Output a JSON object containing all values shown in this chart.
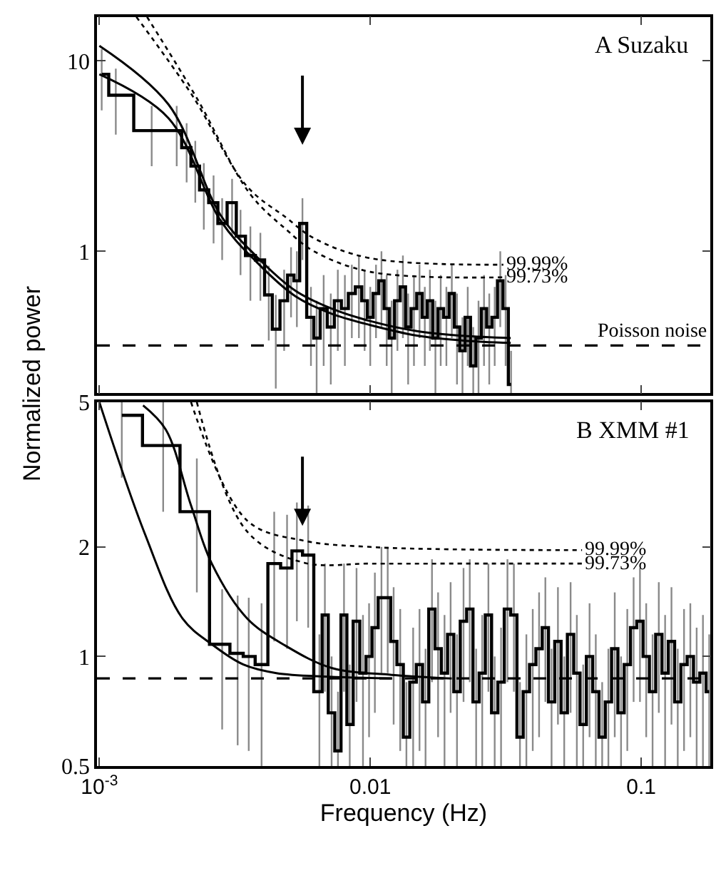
{
  "chart_data": [
    {
      "type": "step",
      "title": "A Suzaku",
      "ylabel": "Normalized power",
      "log": "xy",
      "tick_labels": "y",
      "xlim": [
        0.00098,
        0.18
      ],
      "xticks": [
        {
          "value": 0.001,
          "label": null
        },
        {
          "value": 0.01,
          "label": null
        },
        {
          "value": 0.1,
          "label": null
        }
      ],
      "ylim": [
        0.18,
        17
      ],
      "yticks": [
        1,
        10
      ],
      "ref_lines": [
        {
          "axis": "y",
          "value": 0.32,
          "label": "Poisson noise",
          "line_style": "dashed",
          "color": "#000000"
        }
      ],
      "series": [
        {
          "color": "#000000",
          "x": [
            0.00102,
            0.00115,
            0.00156,
            0.00193,
            0.0021,
            0.00226,
            0.00243,
            0.00264,
            0.00284,
            0.00309,
            0.00332,
            0.00361,
            0.00393,
            0.00422,
            0.00448,
            0.00481,
            0.0051,
            0.00536,
            0.00562,
            0.00604,
            0.00634,
            0.00673,
            0.00715,
            0.00759,
            0.00806,
            0.00855,
            0.00908,
            0.00953,
            0.01,
            0.0105,
            0.011,
            0.0115,
            0.012,
            0.0126,
            0.0132,
            0.0138,
            0.0145,
            0.0152,
            0.0159,
            0.0166,
            0.0174,
            0.0182,
            0.0191,
            0.02,
            0.0209,
            0.0219,
            0.0229,
            0.024,
            0.0251,
            0.0263,
            0.0275,
            0.0288,
            0.0302,
            0.0316,
            0.0331
          ],
          "values": [
            8.5,
            6.6,
            4.3,
            4.3,
            3.5,
            2.8,
            2.1,
            1.8,
            1.4,
            1.8,
            1.2,
            0.95,
            0.9,
            0.59,
            0.39,
            0.55,
            0.75,
            0.7,
            1.4,
            0.45,
            0.35,
            0.5,
            0.4,
            0.55,
            0.5,
            0.6,
            0.65,
            0.55,
            0.45,
            0.6,
            0.7,
            0.5,
            0.35,
            0.55,
            0.65,
            0.4,
            0.5,
            0.6,
            0.45,
            0.55,
            0.35,
            0.5,
            0.45,
            0.6,
            0.4,
            0.3,
            0.45,
            0.25,
            0.35,
            0.5,
            0.4,
            0.45,
            0.7,
            0.5,
            0.2
          ],
          "errors": [
            3,
            2.5,
            1.5,
            1.5,
            1.2,
            1,
            0.8,
            0.7,
            0.5,
            0.6,
            0.45,
            0.4,
            0.35,
            0.25,
            0.2,
            0.25,
            0.3,
            0.3,
            0.5,
            0.2,
            0.2,
            0.25,
            0.2,
            0.25,
            0.25,
            0.25,
            0.3,
            0.25,
            0.2,
            0.25,
            0.3,
            0.25,
            0.2,
            0.25,
            0.3,
            0.2,
            0.25,
            0.25,
            0.2,
            0.25,
            0.2,
            0.25,
            0.2,
            0.25,
            0.2,
            0.15,
            0.2,
            0.15,
            0.2,
            0.25,
            0.2,
            0.2,
            0.3,
            0.25,
            0.1
          ]
        },
        {
          "type": "line",
          "color": "#000000",
          "x": [
            0.001,
            0.0018,
            0.0028,
            0.0038,
            0.0053,
            0.0072,
            0.01,
            0.015,
            0.022,
            0.033
          ],
          "values": [
            12,
            5.9,
            1.55,
            0.94,
            0.62,
            0.5,
            0.43,
            0.38,
            0.36,
            0.35
          ]
        },
        {
          "type": "line",
          "color": "#000000",
          "x": [
            0.001,
            0.0018,
            0.0028,
            0.0038,
            0.0053,
            0.0072,
            0.01,
            0.015,
            0.022,
            0.033
          ],
          "values": [
            8.5,
            5.0,
            1.45,
            0.88,
            0.58,
            0.47,
            0.41,
            0.36,
            0.34,
            0.33
          ]
        },
        {
          "type": "line",
          "name": "99.99%",
          "color": "#000000",
          "line_style": "dotted",
          "x": [
            0.00137,
            0.0022,
            0.0035,
            0.0049,
            0.0062,
            0.01,
            0.031
          ],
          "values": [
            17,
            6.6,
            2.2,
            1.5,
            1.17,
            0.92,
            0.85
          ]
        },
        {
          "type": "line",
          "name": "99.73%",
          "color": "#000000",
          "line_style": "dotted",
          "x": [
            0.0015,
            0.0023,
            0.0036,
            0.0049,
            0.0062,
            0.01,
            0.031
          ],
          "values": [
            17,
            6.3,
            2.0,
            1.3,
            1.0,
            0.78,
            0.73
          ]
        }
      ]
    },
    {
      "type": "step",
      "title": "B XMM #1",
      "xlabel": "Frequency (Hz)",
      "log": "xy",
      "xlim": [
        0.00098,
        0.18
      ],
      "xticks": [
        {
          "value": 0.001,
          "label": "10$^{-3}$"
        },
        0.01,
        0.1
      ],
      "ylim": [
        0.5,
        5
      ],
      "yticks": [
        0.5,
        1,
        2,
        5
      ],
      "ref_lines": [
        {
          "axis": "y",
          "value": 0.87,
          "line_style": "dashed",
          "color": "#000000"
        }
      ],
      "series": [
        {
          "color": "#000000",
          "x": [
            0.00121,
            0.00172,
            0.00229,
            0.00284,
            0.00324,
            0.00356,
            0.00397,
            0.00442,
            0.00493,
            0.00536,
            0.0059,
            0.00649,
            0.0068,
            0.0072,
            0.0076,
            0.008,
            0.0084,
            0.0089,
            0.0094,
            0.0099,
            0.0104,
            0.011,
            0.0116,
            0.0122,
            0.0129,
            0.0136,
            0.0144,
            0.0152,
            0.016,
            0.0169,
            0.0178,
            0.0188,
            0.0198,
            0.0209,
            0.0221,
            0.0233,
            0.0246,
            0.0259,
            0.0273,
            0.0288,
            0.0304,
            0.0321,
            0.0339,
            0.0357,
            0.0377,
            0.0398,
            0.042,
            0.0443,
            0.0467,
            0.0493,
            0.052,
            0.0549,
            0.0579,
            0.0611,
            0.0645,
            0.068,
            0.0718,
            0.0757,
            0.0799,
            0.0843,
            0.0889,
            0.0938,
            0.099,
            0.1044,
            0.1102,
            0.1162,
            0.1226,
            0.1294,
            0.1365,
            0.144,
            0.1519,
            0.1603,
            0.1691,
            0.1784
          ],
          "values": [
            4.6,
            3.8,
            2.5,
            1.08,
            1.02,
            1.0,
            0.95,
            1.8,
            1.75,
            1.95,
            1.9,
            0.8,
            1.3,
            0.7,
            0.55,
            1.3,
            0.65,
            1.25,
            0.9,
            1.0,
            1.2,
            1.45,
            1.45,
            1.1,
            0.95,
            0.6,
            0.85,
            0.95,
            0.75,
            1.35,
            1.05,
            0.9,
            1.15,
            0.8,
            1.25,
            1.35,
            0.75,
            0.9,
            1.3,
            0.7,
            0.85,
            1.35,
            1.3,
            0.6,
            0.8,
            0.95,
            1.05,
            1.2,
            0.75,
            1.1,
            0.7,
            1.15,
            0.9,
            0.65,
            1.0,
            0.8,
            0.6,
            0.75,
            1.05,
            0.7,
            0.95,
            1.2,
            1.25,
            1.0,
            0.8,
            1.15,
            0.9,
            1.1,
            0.75,
            0.95,
            1.0,
            0.85,
            0.9,
            0.8
          ],
          "errors": [
            1.5,
            1.3,
            1.0,
            0.45,
            0.45,
            0.45,
            0.45,
            0.7,
            0.7,
            0.7,
            0.7,
            0.35,
            0.5,
            0.3,
            0.25,
            0.5,
            0.3,
            0.5,
            0.4,
            0.4,
            0.5,
            0.55,
            0.55,
            0.45,
            0.4,
            0.25,
            0.35,
            0.4,
            0.3,
            0.5,
            0.45,
            0.4,
            0.45,
            0.35,
            0.5,
            0.5,
            0.3,
            0.4,
            0.5,
            0.3,
            0.35,
            0.5,
            0.5,
            0.25,
            0.35,
            0.4,
            0.45,
            0.45,
            0.3,
            0.45,
            0.3,
            0.45,
            0.4,
            0.3,
            0.4,
            0.35,
            0.25,
            0.3,
            0.45,
            0.3,
            0.4,
            0.45,
            0.5,
            0.4,
            0.35,
            0.45,
            0.4,
            0.45,
            0.3,
            0.4,
            0.4,
            0.35,
            0.4,
            0.35
          ]
        },
        {
          "type": "line",
          "color": "#000000",
          "x": [
            0.001,
            0.00147,
            0.00203,
            0.0026,
            0.0034,
            0.0045,
            0.007,
            0.012
          ],
          "values": [
            5,
            2.18,
            1.27,
            1.08,
            0.95,
            0.9,
            0.88,
            0.87
          ]
        },
        {
          "type": "line",
          "color": "#000000",
          "x": [
            0.00145,
            0.00176,
            0.00218,
            0.0026,
            0.00352,
            0.00487,
            0.0072,
            0.012,
            0.02
          ],
          "values": [
            4.9,
            4.2,
            2.6,
            1.8,
            1.27,
            1.07,
            0.93,
            0.89,
            0.87
          ]
        },
        {
          "type": "line",
          "name": "99.99%",
          "color": "#000000",
          "line_style": "dotted",
          "x": [
            0.00218,
            0.00352,
            0.0057,
            0.01,
            0.02,
            0.0605
          ],
          "values": [
            5,
            2.36,
            2.08,
            2.0,
            1.97,
            1.96
          ]
        },
        {
          "type": "line",
          "name": "99.73%",
          "color": "#000000",
          "line_style": "dotted",
          "x": [
            0.00229,
            0.00352,
            0.0057,
            0.01,
            0.02,
            0.0605
          ],
          "values": [
            5,
            2.2,
            1.81,
            1.8,
            1.8,
            1.8
          ]
        }
      ]
    }
  ]
}
